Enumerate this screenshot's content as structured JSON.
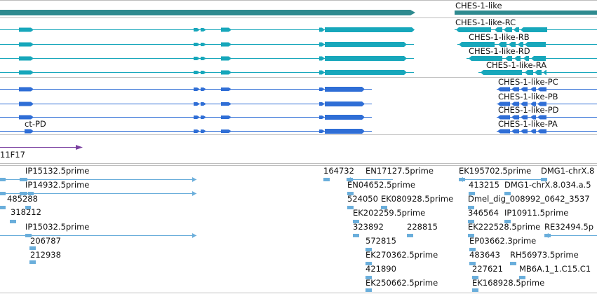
{
  "colors": {
    "gene_dark": "#2e8a8f",
    "transcript_teal": "#17a7bb",
    "transcript_blue": "#2f6ed6",
    "oligo": "#7a3fa0",
    "est": "#6aaedb",
    "divider": "#bdbdbd"
  },
  "genes": {
    "label": "CHES-1-like"
  },
  "transcripts": [
    {
      "label": "CHES-1-like-RC"
    },
    {
      "label": "CHES-1-like-RB"
    },
    {
      "label": "CHES-1-like-RD"
    },
    {
      "label": "CHES-1-like-RA"
    }
  ],
  "proteins": [
    {
      "label": "CHES-1-like-PC"
    },
    {
      "label": "CHES-1-like-PB"
    },
    {
      "label": "CHES-1-like-PD"
    },
    {
      "label": "CHES-1-like-PA"
    },
    {
      "label": "ct-PD"
    }
  ],
  "oligo": {
    "label": "11F17"
  },
  "ests": [
    {
      "label": "IP15132.5prime"
    },
    {
      "label": "IP14932.5prime"
    },
    {
      "label": "485288"
    },
    {
      "label": "318212"
    },
    {
      "label": "IP15032.5prime"
    },
    {
      "label": "206787"
    },
    {
      "label": "212938"
    },
    {
      "label": "164732"
    },
    {
      "label": "EN17127.5prime"
    },
    {
      "label": "EN04652.5prime"
    },
    {
      "label": "524050"
    },
    {
      "label": "EK080928.5prime"
    },
    {
      "label": "EK202259.5prime"
    },
    {
      "label": "323892"
    },
    {
      "label": "228815"
    },
    {
      "label": "572815"
    },
    {
      "label": "EK270362.5prime"
    },
    {
      "label": "421890"
    },
    {
      "label": "EK250662.5prime"
    },
    {
      "label": "EK195702.5prime"
    },
    {
      "label": "DMG1-chrX.8"
    },
    {
      "label": "413215"
    },
    {
      "label": "DMG1-chrX.8.034.a.5"
    },
    {
      "label": "Dmel_dig_008992_0642_3537"
    },
    {
      "label": "346564"
    },
    {
      "label": "IP10911.5prime"
    },
    {
      "label": "EK222528.5prime"
    },
    {
      "label": "RE32494.5p"
    },
    {
      "label": "EP03662.3prime"
    },
    {
      "label": "483643"
    },
    {
      "label": "RH56973.5prime"
    },
    {
      "label": "227621"
    },
    {
      "label": "MB6A.1_1.C15.C1"
    },
    {
      "label": "EK168928.5prime"
    }
  ]
}
